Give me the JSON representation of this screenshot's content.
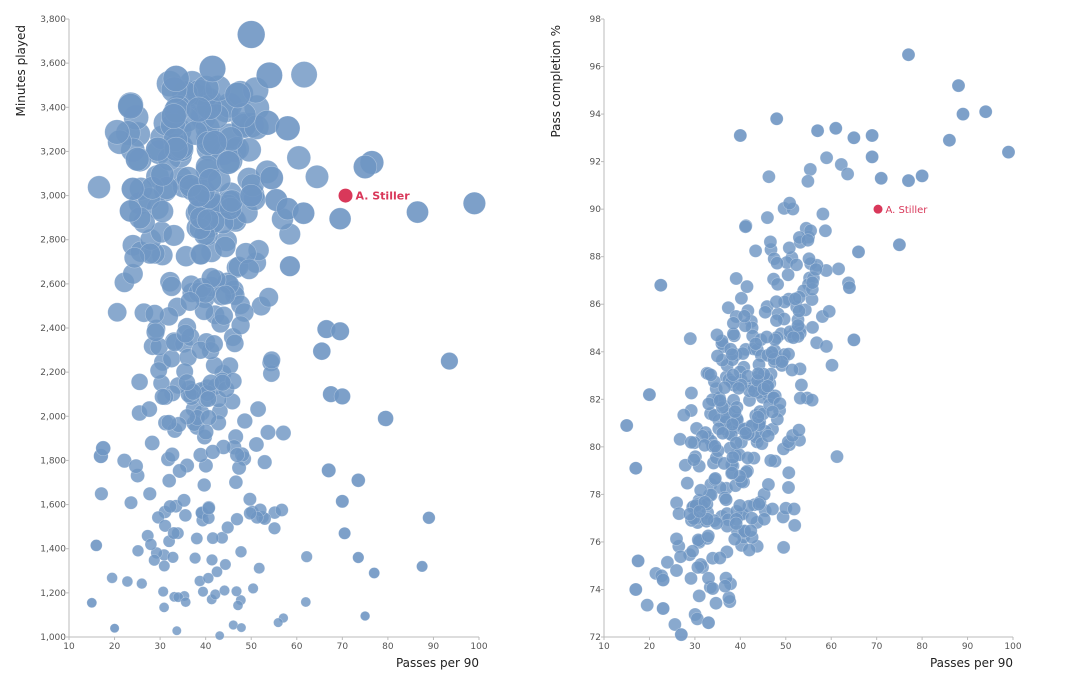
{
  "chart_data": [
    {
      "type": "scatter",
      "xlabel": "Passes per 90",
      "ylabel": "Minutes played",
      "xlim": [
        10,
        100
      ],
      "ylim": [
        1000,
        3800
      ],
      "xticks": [
        "10",
        "20",
        "30",
        "40",
        "50",
        "60",
        "70",
        "80",
        "90",
        "100"
      ],
      "yticks": [
        "1,000",
        "1,200",
        "1,400",
        "1,600",
        "1,800",
        "2,000",
        "2,200",
        "2,400",
        "2,600",
        "2,800",
        "3,000",
        "3,200",
        "3,400",
        "3,600",
        "3,800"
      ],
      "point_color": "#6f96c3",
      "highlight_color": "#d9385a",
      "highlight": {
        "label": "A. Stiller",
        "x": 70.7,
        "y": 3000
      },
      "notable_points": [
        {
          "x": 50,
          "y": 3730
        },
        {
          "x": 41.5,
          "y": 3575
        },
        {
          "x": 33.5,
          "y": 3530
        },
        {
          "x": 54,
          "y": 3545
        },
        {
          "x": 47,
          "y": 3455
        },
        {
          "x": 23.5,
          "y": 3405
        },
        {
          "x": 38.5,
          "y": 3390
        },
        {
          "x": 33,
          "y": 3360
        },
        {
          "x": 53.5,
          "y": 3330
        },
        {
          "x": 58,
          "y": 3305
        },
        {
          "x": 42,
          "y": 3240
        },
        {
          "x": 33.5,
          "y": 3210
        },
        {
          "x": 29.5,
          "y": 3210
        },
        {
          "x": 25,
          "y": 3165
        },
        {
          "x": 45,
          "y": 3150
        },
        {
          "x": 76.5,
          "y": 3150
        },
        {
          "x": 75,
          "y": 3130
        },
        {
          "x": 54.5,
          "y": 3080
        },
        {
          "x": 30.5,
          "y": 3095
        },
        {
          "x": 41,
          "y": 3070
        },
        {
          "x": 24,
          "y": 3030
        },
        {
          "x": 38.5,
          "y": 3000
        },
        {
          "x": 50,
          "y": 3000
        },
        {
          "x": 55.5,
          "y": 2980
        },
        {
          "x": 58,
          "y": 2940
        },
        {
          "x": 23.5,
          "y": 2930
        },
        {
          "x": 61.5,
          "y": 2920
        },
        {
          "x": 86.5,
          "y": 2925
        },
        {
          "x": 99,
          "y": 2965
        },
        {
          "x": 69.5,
          "y": 2895
        },
        {
          "x": 58.5,
          "y": 2680
        },
        {
          "x": 66.5,
          "y": 2395
        },
        {
          "x": 69.5,
          "y": 2385
        },
        {
          "x": 93.5,
          "y": 2250
        },
        {
          "x": 65.5,
          "y": 2295
        },
        {
          "x": 79.5,
          "y": 1990
        },
        {
          "x": 67.5,
          "y": 2100
        },
        {
          "x": 70,
          "y": 2090
        },
        {
          "x": 67,
          "y": 1755
        },
        {
          "x": 73.5,
          "y": 1710
        },
        {
          "x": 70,
          "y": 1615
        },
        {
          "x": 89,
          "y": 1540
        },
        {
          "x": 70.5,
          "y": 1470
        },
        {
          "x": 73.5,
          "y": 1360
        },
        {
          "x": 77,
          "y": 1290
        },
        {
          "x": 87.5,
          "y": 1320
        },
        {
          "x": 75,
          "y": 1095
        },
        {
          "x": 15,
          "y": 1155
        },
        {
          "x": 16,
          "y": 1415
        },
        {
          "x": 17,
          "y": 1820
        },
        {
          "x": 17.5,
          "y": 1855
        },
        {
          "x": 20,
          "y": 1040
        }
      ]
    },
    {
      "type": "scatter",
      "xlabel": "Passes per 90",
      "ylabel": "Pass completion %",
      "xlim": [
        10,
        100
      ],
      "ylim": [
        72,
        98
      ],
      "xticks": [
        "10",
        "20",
        "30",
        "40",
        "50",
        "60",
        "70",
        "80",
        "90",
        "100"
      ],
      "yticks": [
        "72",
        "74",
        "76",
        "78",
        "80",
        "82",
        "84",
        "86",
        "88",
        "90",
        "92",
        "94",
        "96",
        "98"
      ],
      "point_color": "#6f96c3",
      "highlight_color": "#d9385a",
      "highlight": {
        "label": "A. Stiller",
        "x": 70.3,
        "y": 90.0
      },
      "notable_points": [
        {
          "x": 77,
          "y": 96.5
        },
        {
          "x": 88,
          "y": 95.2
        },
        {
          "x": 94,
          "y": 94.1
        },
        {
          "x": 89,
          "y": 94.0
        },
        {
          "x": 99,
          "y": 92.4
        },
        {
          "x": 86,
          "y": 92.9
        },
        {
          "x": 80,
          "y": 91.4
        },
        {
          "x": 77,
          "y": 91.2
        },
        {
          "x": 75,
          "y": 88.5
        },
        {
          "x": 71,
          "y": 91.3
        },
        {
          "x": 69,
          "y": 93.1
        },
        {
          "x": 69,
          "y": 92.2
        },
        {
          "x": 65,
          "y": 93.0
        },
        {
          "x": 66,
          "y": 88.2
        },
        {
          "x": 65,
          "y": 84.5
        },
        {
          "x": 64,
          "y": 86.7
        },
        {
          "x": 15,
          "y": 80.9
        },
        {
          "x": 17,
          "y": 79.1
        },
        {
          "x": 17,
          "y": 74.0
        },
        {
          "x": 17.5,
          "y": 75.2
        },
        {
          "x": 22.5,
          "y": 86.8
        },
        {
          "x": 20,
          "y": 82.2
        },
        {
          "x": 27,
          "y": 72.1
        },
        {
          "x": 33,
          "y": 72.6
        },
        {
          "x": 23,
          "y": 73.2
        },
        {
          "x": 23,
          "y": 74.4
        },
        {
          "x": 40,
          "y": 93.1
        },
        {
          "x": 48,
          "y": 93.8
        },
        {
          "x": 57,
          "y": 93.3
        },
        {
          "x": 61,
          "y": 93.4
        }
      ]
    }
  ]
}
